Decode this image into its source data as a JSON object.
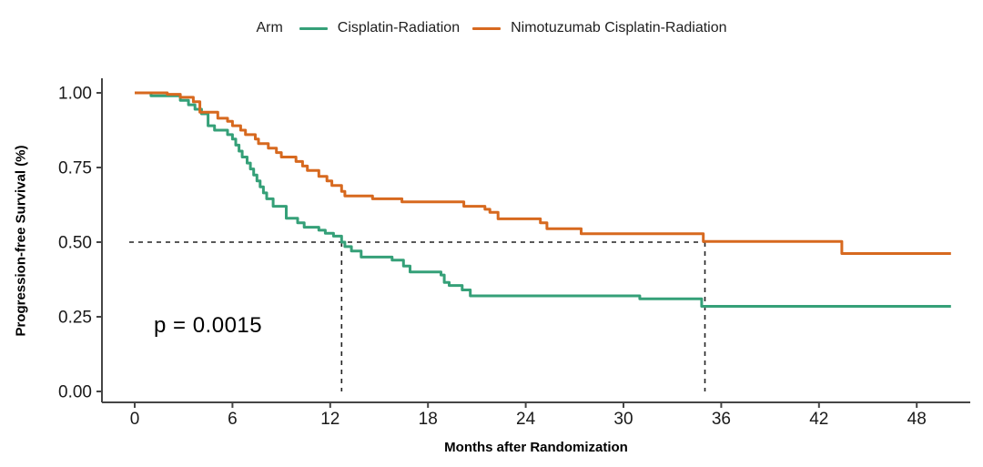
{
  "legend": {
    "title": "Arm",
    "items": [
      {
        "label": "Cisplatin-Radiation",
        "color": "#35a078"
      },
      {
        "label": "Nimotuzumab Cisplatin-Radiation",
        "color": "#d7691f"
      }
    ]
  },
  "annotations": {
    "p_value": "p = 0.0015"
  },
  "axes": {
    "x_label": "Months after Randomization",
    "y_label": "Progression-free Survival (%)",
    "x_ticks": [
      0,
      6,
      12,
      18,
      24,
      30,
      36,
      42,
      48
    ],
    "y_ticks": [
      0,
      0.25,
      0.5,
      0.75,
      1.0
    ],
    "y_tick_labels": [
      "0.00",
      "0.25",
      "0.50",
      "0.75",
      "1.00"
    ]
  },
  "chart_data": {
    "type": "line",
    "subtype": "kaplan-meier-step",
    "title": "",
    "xlabel": "Months after Randomization",
    "ylabel": "Progression-free Survival (%)",
    "xlim": [
      -2,
      51.5
    ],
    "ylim": [
      -0.05,
      1.05
    ],
    "grid": false,
    "legend_position": "top",
    "p_value": "p = 0.0015",
    "median_reference": {
      "y": 0.5,
      "x_medians": [
        12.7,
        35.0
      ]
    },
    "series": [
      {
        "name": "Cisplatin-Radiation",
        "color": "#35a078",
        "points": [
          [
            0,
            1.0
          ],
          [
            1.0,
            0.99
          ],
          [
            2.8,
            0.975
          ],
          [
            3.3,
            0.96
          ],
          [
            3.7,
            0.945
          ],
          [
            4.1,
            0.93
          ],
          [
            4.5,
            0.89
          ],
          [
            4.9,
            0.875
          ],
          [
            5.7,
            0.86
          ],
          [
            6.0,
            0.845
          ],
          [
            6.2,
            0.825
          ],
          [
            6.4,
            0.805
          ],
          [
            6.6,
            0.785
          ],
          [
            6.9,
            0.765
          ],
          [
            7.1,
            0.745
          ],
          [
            7.3,
            0.725
          ],
          [
            7.5,
            0.705
          ],
          [
            7.7,
            0.685
          ],
          [
            7.9,
            0.665
          ],
          [
            8.1,
            0.645
          ],
          [
            8.5,
            0.62
          ],
          [
            9.3,
            0.58
          ],
          [
            10.0,
            0.565
          ],
          [
            10.4,
            0.55
          ],
          [
            11.3,
            0.54
          ],
          [
            11.7,
            0.53
          ],
          [
            12.2,
            0.52
          ],
          [
            12.7,
            0.5
          ],
          [
            12.9,
            0.485
          ],
          [
            13.3,
            0.47
          ],
          [
            13.9,
            0.45
          ],
          [
            15.8,
            0.44
          ],
          [
            16.5,
            0.42
          ],
          [
            16.9,
            0.4
          ],
          [
            18.8,
            0.39
          ],
          [
            19.0,
            0.365
          ],
          [
            19.3,
            0.355
          ],
          [
            20.1,
            0.34
          ],
          [
            20.6,
            0.32
          ],
          [
            31.0,
            0.31
          ],
          [
            34.8,
            0.285
          ],
          [
            50.1,
            0.285
          ]
        ]
      },
      {
        "name": "Nimotuzumab Cisplatin-Radiation",
        "color": "#d7691f",
        "points": [
          [
            0,
            1.0
          ],
          [
            2.0,
            0.995
          ],
          [
            2.8,
            0.985
          ],
          [
            3.6,
            0.97
          ],
          [
            4.0,
            0.935
          ],
          [
            5.1,
            0.915
          ],
          [
            5.7,
            0.905
          ],
          [
            6.0,
            0.89
          ],
          [
            6.5,
            0.875
          ],
          [
            6.8,
            0.86
          ],
          [
            7.4,
            0.845
          ],
          [
            7.6,
            0.83
          ],
          [
            8.2,
            0.815
          ],
          [
            8.7,
            0.8
          ],
          [
            9.0,
            0.785
          ],
          [
            9.9,
            0.77
          ],
          [
            10.3,
            0.755
          ],
          [
            10.6,
            0.74
          ],
          [
            11.3,
            0.72
          ],
          [
            11.8,
            0.705
          ],
          [
            12.1,
            0.69
          ],
          [
            12.7,
            0.67
          ],
          [
            12.9,
            0.655
          ],
          [
            14.6,
            0.645
          ],
          [
            16.4,
            0.635
          ],
          [
            20.2,
            0.62
          ],
          [
            21.5,
            0.61
          ],
          [
            21.8,
            0.6
          ],
          [
            22.3,
            0.578
          ],
          [
            24.9,
            0.565
          ],
          [
            25.3,
            0.545
          ],
          [
            27.4,
            0.528
          ],
          [
            34.9,
            0.502
          ],
          [
            43.4,
            0.462
          ],
          [
            50.1,
            0.462
          ]
        ]
      }
    ]
  }
}
